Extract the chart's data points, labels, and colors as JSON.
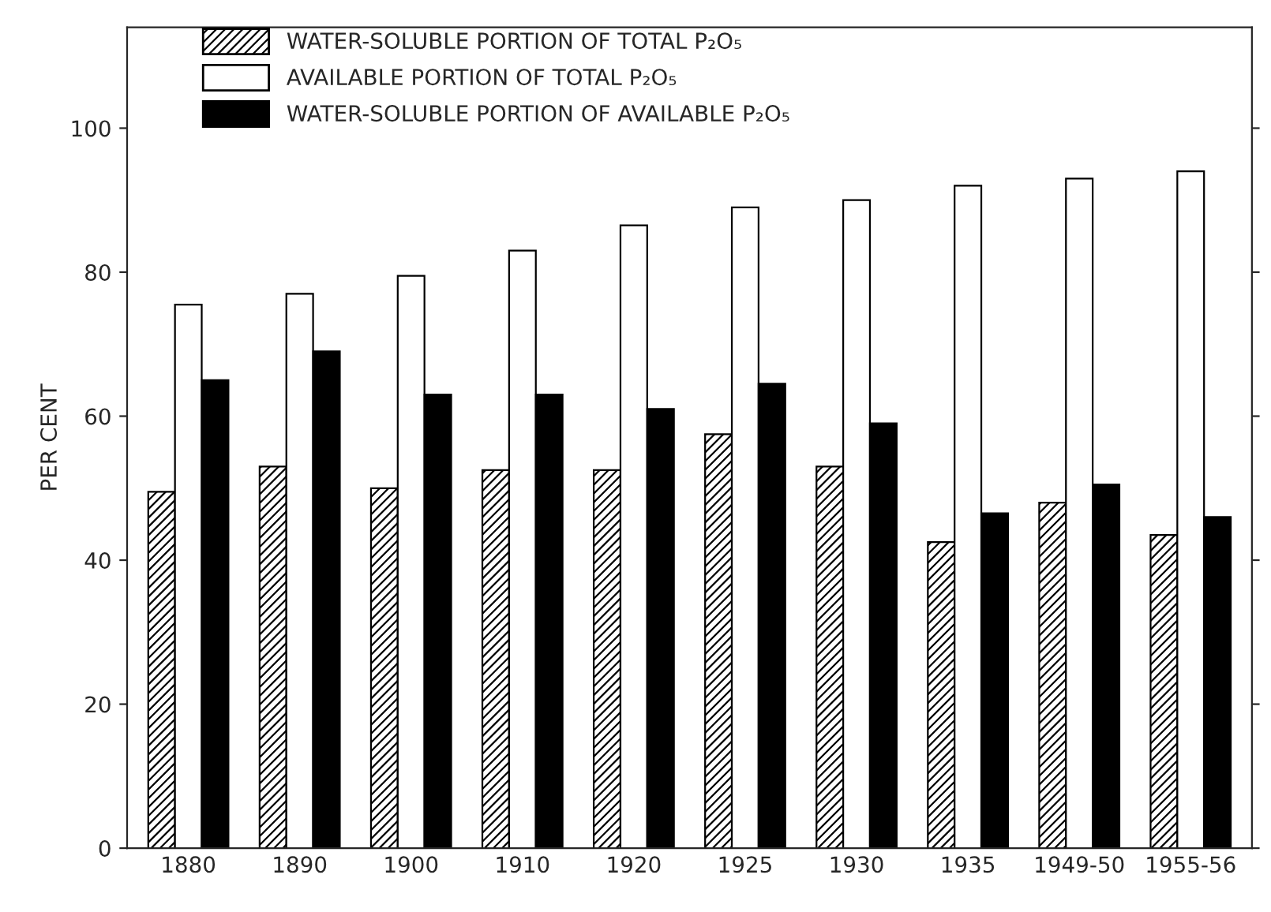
{
  "chart_data": {
    "type": "bar",
    "ylabel": "PER CENT",
    "categories": [
      "1880",
      "1890",
      "1900",
      "1910",
      "1920",
      "1925",
      "1930",
      "1935",
      "1949-50",
      "1955-56"
    ],
    "series": [
      {
        "name": "WATER-SOLUBLE PORTION OF TOTAL P₂O₅",
        "color": "#000000",
        "values": [
          49.5,
          53,
          50,
          52.5,
          52.5,
          57.5,
          53,
          42.5,
          48,
          43.5
        ]
      },
      {
        "name": "AVAILABLE PORTION OF TOTAL P₂O₅",
        "color": "#ffffff",
        "values": [
          75.5,
          77,
          79.5,
          83,
          86.5,
          89,
          90,
          92,
          93,
          94
        ]
      },
      {
        "name": "WATER-SOLUBLE PORTION OF AVAILABLE P₂O₅",
        "color": "#000000",
        "values": [
          65,
          69,
          63,
          63,
          61,
          64.5,
          59,
          46.5,
          50.5,
          46
        ]
      }
    ],
    "ylim": [
      0,
      114
    ],
    "yticks": [
      0,
      20,
      40,
      60,
      80,
      100
    ],
    "grid": false,
    "legend": "top left"
  }
}
